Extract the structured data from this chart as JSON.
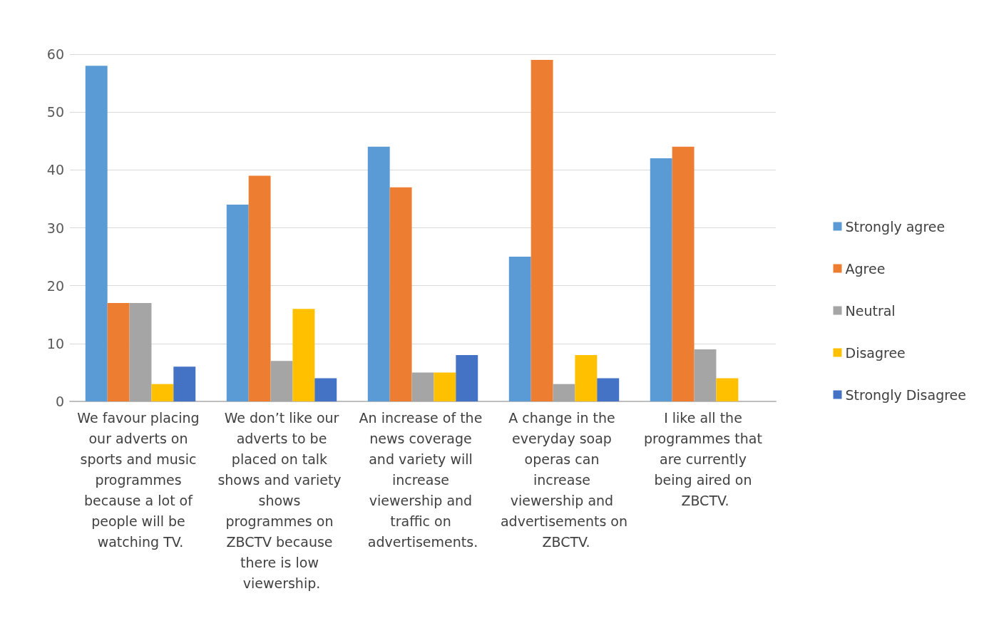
{
  "chart_data": {
    "type": "bar",
    "categories": [
      "We favour placing our adverts on sports and music programmes because a lot of people will be watching TV.",
      "We don’t like our adverts to be placed on talk shows and variety shows programmes on ZBCTV because there is low viewership.",
      "An increase of the news coverage and variety will increase viewership and traffic on advertisements.",
      "A change in the everyday soap operas can increase viewership and advertisements on ZBCTV.",
      "I like all the programmes that are currently being aired on ZBCTV."
    ],
    "series": [
      {
        "name": "Strongly agree",
        "color": "#5b9bd5",
        "values": [
          58,
          34,
          44,
          25,
          42
        ]
      },
      {
        "name": "Agree",
        "color": "#ed7d31",
        "values": [
          17,
          39,
          37,
          59,
          44
        ]
      },
      {
        "name": "Neutral",
        "color": "#a5a5a5",
        "values": [
          17,
          7,
          5,
          3,
          9
        ]
      },
      {
        "name": "Disagree",
        "color": "#ffc000",
        "values": [
          3,
          16,
          5,
          8,
          4
        ]
      },
      {
        "name": "Strongly Disagree",
        "color": "#4472c4",
        "values": [
          6,
          4,
          8,
          4,
          0
        ]
      }
    ],
    "ylim": [
      0,
      60
    ],
    "yticks": [
      0,
      10,
      20,
      30,
      40,
      50,
      60
    ],
    "grid": "y",
    "legend": "right"
  }
}
